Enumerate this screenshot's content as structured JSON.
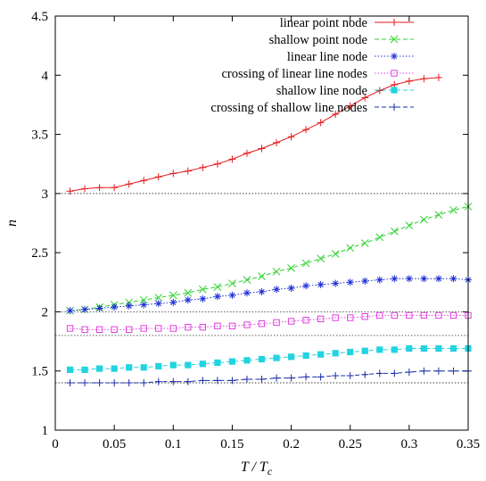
{
  "chart_data": {
    "type": "line",
    "xlabel": "T / T",
    "xlabel_sub": "c",
    "ylabel": "n",
    "xlim": [
      0,
      0.35
    ],
    "ylim": [
      1,
      4.5
    ],
    "xticks": [
      0,
      0.05,
      0.1,
      0.15,
      0.2,
      0.25,
      0.3,
      0.35
    ],
    "xtick_labels": [
      "0",
      "0.05",
      "0.1",
      "0.15",
      "0.2",
      "0.25",
      "0.3",
      "0.35"
    ],
    "yticks": [
      1,
      1.5,
      2,
      2.5,
      3,
      3.5,
      4,
      4.5
    ],
    "ytick_labels": [
      "1",
      "1.5",
      "2",
      "2.5",
      "3",
      "3.5",
      "4",
      "4.5"
    ],
    "reference_lines": [
      3,
      2,
      1.8,
      1.4
    ],
    "legend_position": "top-right",
    "series": [
      {
        "name": "linear point node",
        "color": "#e41a1c",
        "marker": "plus",
        "line": "solid",
        "x": [
          0.0125,
          0.025,
          0.0375,
          0.05,
          0.0625,
          0.075,
          0.0875,
          0.1,
          0.1125,
          0.125,
          0.1375,
          0.15,
          0.1625,
          0.175,
          0.1875,
          0.2,
          0.2125,
          0.225,
          0.2375,
          0.25,
          0.2625,
          0.275,
          0.2875,
          0.3,
          0.3125,
          0.325
        ],
        "y": [
          3.02,
          3.04,
          3.05,
          3.05,
          3.08,
          3.11,
          3.14,
          3.17,
          3.19,
          3.22,
          3.25,
          3.29,
          3.34,
          3.38,
          3.43,
          3.48,
          3.54,
          3.6,
          3.67,
          3.74,
          3.81,
          3.87,
          3.92,
          3.95,
          3.97,
          3.98
        ]
      },
      {
        "name": "shallow point node",
        "color": "#2fd12f",
        "marker": "x",
        "line": "dashed",
        "x": [
          0.0125,
          0.025,
          0.0375,
          0.05,
          0.0625,
          0.075,
          0.0875,
          0.1,
          0.1125,
          0.125,
          0.1375,
          0.15,
          0.1625,
          0.175,
          0.1875,
          0.2,
          0.2125,
          0.225,
          0.2375,
          0.25,
          0.2625,
          0.275,
          0.2875,
          0.3,
          0.3125,
          0.325,
          0.3375,
          0.35
        ],
        "y": [
          2.01,
          2.02,
          2.04,
          2.06,
          2.08,
          2.1,
          2.12,
          2.14,
          2.16,
          2.19,
          2.21,
          2.24,
          2.27,
          2.3,
          2.34,
          2.37,
          2.41,
          2.45,
          2.49,
          2.54,
          2.58,
          2.63,
          2.68,
          2.73,
          2.78,
          2.82,
          2.86,
          2.89
        ]
      },
      {
        "name": "linear line node",
        "color": "#1f2fd6",
        "marker": "asterisk",
        "line": "dotted",
        "x": [
          0.0125,
          0.025,
          0.0375,
          0.05,
          0.0625,
          0.075,
          0.0875,
          0.1,
          0.1125,
          0.125,
          0.1375,
          0.15,
          0.1625,
          0.175,
          0.1875,
          0.2,
          0.2125,
          0.225,
          0.2375,
          0.25,
          0.2625,
          0.275,
          0.2875,
          0.3,
          0.3125,
          0.325,
          0.3375,
          0.35
        ],
        "y": [
          2.01,
          2.02,
          2.03,
          2.04,
          2.05,
          2.06,
          2.07,
          2.08,
          2.1,
          2.11,
          2.13,
          2.14,
          2.16,
          2.17,
          2.19,
          2.2,
          2.22,
          2.23,
          2.24,
          2.25,
          2.26,
          2.27,
          2.28,
          2.28,
          2.28,
          2.28,
          2.28,
          2.27
        ]
      },
      {
        "name": "crossing of linear line nodes",
        "color": "#e040e0",
        "marker": "square-open",
        "line": "dotted",
        "x": [
          0.0125,
          0.025,
          0.0375,
          0.05,
          0.0625,
          0.075,
          0.0875,
          0.1,
          0.1125,
          0.125,
          0.1375,
          0.15,
          0.1625,
          0.175,
          0.1875,
          0.2,
          0.2125,
          0.225,
          0.2375,
          0.25,
          0.2625,
          0.275,
          0.2875,
          0.3,
          0.3125,
          0.325,
          0.3375,
          0.35
        ],
        "y": [
          1.86,
          1.85,
          1.85,
          1.85,
          1.85,
          1.86,
          1.86,
          1.86,
          1.87,
          1.87,
          1.88,
          1.88,
          1.89,
          1.9,
          1.91,
          1.92,
          1.93,
          1.94,
          1.95,
          1.95,
          1.96,
          1.97,
          1.97,
          1.97,
          1.97,
          1.97,
          1.97,
          1.97
        ]
      },
      {
        "name": "shallow line node",
        "color": "#22d3e0",
        "marker": "square-filled",
        "line": "dashed",
        "x": [
          0.0125,
          0.025,
          0.0375,
          0.05,
          0.0625,
          0.075,
          0.0875,
          0.1,
          0.1125,
          0.125,
          0.1375,
          0.15,
          0.1625,
          0.175,
          0.1875,
          0.2,
          0.2125,
          0.225,
          0.2375,
          0.25,
          0.2625,
          0.275,
          0.2875,
          0.3,
          0.3125,
          0.325,
          0.3375,
          0.35
        ],
        "y": [
          1.51,
          1.51,
          1.52,
          1.52,
          1.53,
          1.53,
          1.54,
          1.55,
          1.55,
          1.56,
          1.57,
          1.58,
          1.59,
          1.6,
          1.61,
          1.62,
          1.63,
          1.64,
          1.65,
          1.66,
          1.67,
          1.68,
          1.68,
          1.69,
          1.69,
          1.69,
          1.69,
          1.69
        ]
      },
      {
        "name": "crossing of shallow line nodes",
        "color": "#1a2ea8",
        "marker": "plus",
        "line": "dashed",
        "x": [
          0.0125,
          0.025,
          0.0375,
          0.05,
          0.0625,
          0.075,
          0.0875,
          0.1,
          0.1125,
          0.125,
          0.1375,
          0.15,
          0.1625,
          0.175,
          0.1875,
          0.2,
          0.2125,
          0.225,
          0.2375,
          0.25,
          0.2625,
          0.275,
          0.2875,
          0.3,
          0.3125,
          0.325,
          0.3375,
          0.35
        ],
        "y": [
          1.4,
          1.4,
          1.4,
          1.4,
          1.4,
          1.4,
          1.41,
          1.41,
          1.41,
          1.42,
          1.42,
          1.42,
          1.43,
          1.43,
          1.44,
          1.44,
          1.45,
          1.45,
          1.46,
          1.46,
          1.47,
          1.48,
          1.48,
          1.49,
          1.5,
          1.5,
          1.5,
          1.5
        ]
      }
    ]
  }
}
